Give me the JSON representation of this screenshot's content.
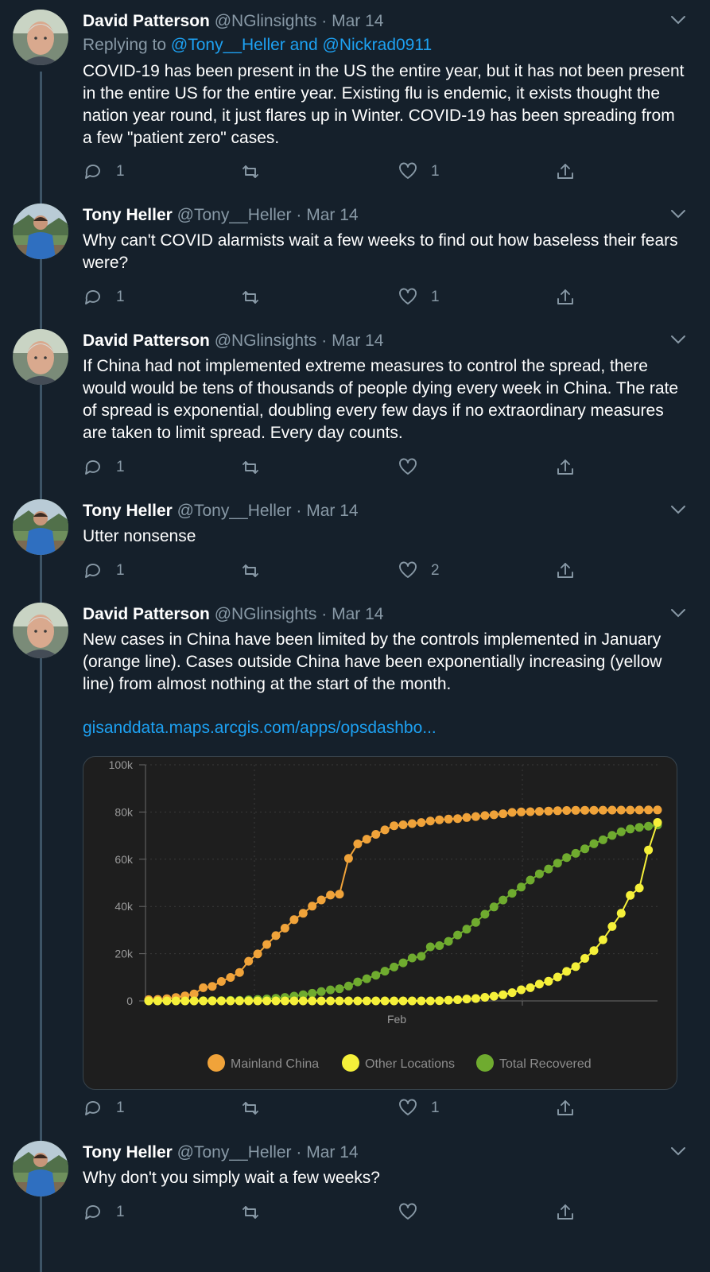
{
  "tweets": [
    {
      "name": "David Patterson",
      "handle": "@NGlinsights",
      "date": "Mar 14",
      "replying_label": "Replying to",
      "replying_mentions": "@Tony__Heller and @Nickrad0911",
      "text": "COVID-19 has been present in the US the entire year, but it has not been present in the entire US for the entire year. Existing flu is endemic, it exists thought the nation year round, it just flares up in Winter. COVID-19 has been spreading from a few \"patient zero\" cases.",
      "replies": "1",
      "retweets": "",
      "likes": "1"
    },
    {
      "name": "Tony Heller",
      "handle": "@Tony__Heller",
      "date": "Mar 14",
      "text": "Why can't COVID alarmists wait a few weeks to find out how baseless their fears were?",
      "replies": "1",
      "retweets": "",
      "likes": "1"
    },
    {
      "name": "David Patterson",
      "handle": "@NGlinsights",
      "date": "Mar 14",
      "text": "If China had not implemented extreme measures to control the spread, there would would be tens of thousands of people dying every week in China. The rate of spread is exponential, doubling every few days if no extraordinary measures are taken to limit spread. Every day counts.",
      "replies": "1",
      "retweets": "",
      "likes": ""
    },
    {
      "name": "Tony Heller",
      "handle": "@Tony__Heller",
      "date": "Mar 14",
      "text": "Utter nonsense",
      "replies": "1",
      "retweets": "",
      "likes": "2"
    },
    {
      "name": "David Patterson",
      "handle": "@NGlinsights",
      "date": "Mar 14",
      "text": "New cases in China have been limited by the controls implemented in January (orange line). Cases outside China have been exponentially increasing (yellow line) from almost nothing at the start of the month.",
      "link": "gisanddata.maps.arcgis.com/apps/opsdashbo...",
      "replies": "1",
      "retweets": "",
      "likes": "1"
    },
    {
      "name": "Tony Heller",
      "handle": "@Tony__Heller",
      "date": "Mar 14",
      "text": "Why don't you simply wait a few weeks?",
      "replies": "1",
      "retweets": "",
      "likes": ""
    }
  ],
  "separator": "·",
  "icons": {
    "reply": "reply-icon",
    "retweet": "retweet-icon",
    "like": "heart-icon",
    "share": "share-icon",
    "more": "chevron-down-icon"
  },
  "colors": {
    "background": "#15202b",
    "text": "#ffffff",
    "muted": "#8899a6",
    "link": "#1da1f2",
    "mainland": "#f0a33a",
    "other": "#f5f03a",
    "recovered": "#6fab2f"
  },
  "chart_data": {
    "type": "line",
    "x_tick_labels": [
      "Feb"
    ],
    "y_tick_labels": [
      "0",
      "20k",
      "40k",
      "60k",
      "80k",
      "100k"
    ],
    "ylim": [
      0,
      100000
    ],
    "x_count": 57,
    "legend_position": "bottom",
    "series": [
      {
        "name": "Mainland China",
        "color": "#f0a33a",
        "values": [
          555,
          653,
          941,
          1438,
          2118,
          2927,
          5578,
          6165,
          8235,
          9925,
          12038,
          16787,
          19887,
          23898,
          27643,
          30802,
          34395,
          37121,
          40151,
          42763,
          44803,
          45222,
          60324,
          66492,
          68500,
          70548,
          72436,
          74185,
          74576,
          75077,
          75550,
          76200,
          76700,
          77000,
          77200,
          77660,
          78065,
          78498,
          78824,
          79251,
          79824,
          80026,
          80151,
          80270,
          80409,
          80552,
          80651,
          80695,
          80735,
          80754,
          80778,
          80793,
          80813,
          80824,
          80844,
          80860,
          80881
        ]
      },
      {
        "name": "Other Locations",
        "color": "#f5f03a",
        "values": [
          0,
          0,
          0,
          0,
          0,
          0,
          0,
          0,
          0,
          0,
          0,
          0,
          0,
          0,
          0,
          0,
          0,
          0,
          0,
          0,
          0,
          0,
          0,
          0,
          0,
          0,
          0,
          0,
          0,
          0,
          0,
          0,
          100,
          300,
          500,
          800,
          1000,
          1500,
          2000,
          2600,
          3500,
          4700,
          5600,
          7100,
          8300,
          10100,
          12500,
          14500,
          18000,
          21300,
          25900,
          31500,
          37100,
          44700,
          47800,
          63900,
          75600
        ]
      },
      {
        "name": "Total Recovered",
        "color": "#6fab2f",
        "values": [
          28,
          30,
          36,
          39,
          52,
          61,
          107,
          126,
          143,
          222,
          284,
          472,
          623,
          852,
          1124,
          1487,
          2011,
          2616,
          3244,
          3946,
          4683,
          5150,
          6295,
          8058,
          9395,
          10865,
          12583,
          14352,
          16121,
          18177,
          18890,
          22886,
          23394,
          25227,
          27905,
          30384,
          33277,
          36711,
          39782,
          42716,
          45602,
          48228,
          51170,
          53796,
          55866,
          58359,
          60695,
          62494,
          64404,
          66578,
          68200,
          70100,
          71600,
          72800,
          73500,
          74000,
          74500
        ]
      }
    ]
  }
}
